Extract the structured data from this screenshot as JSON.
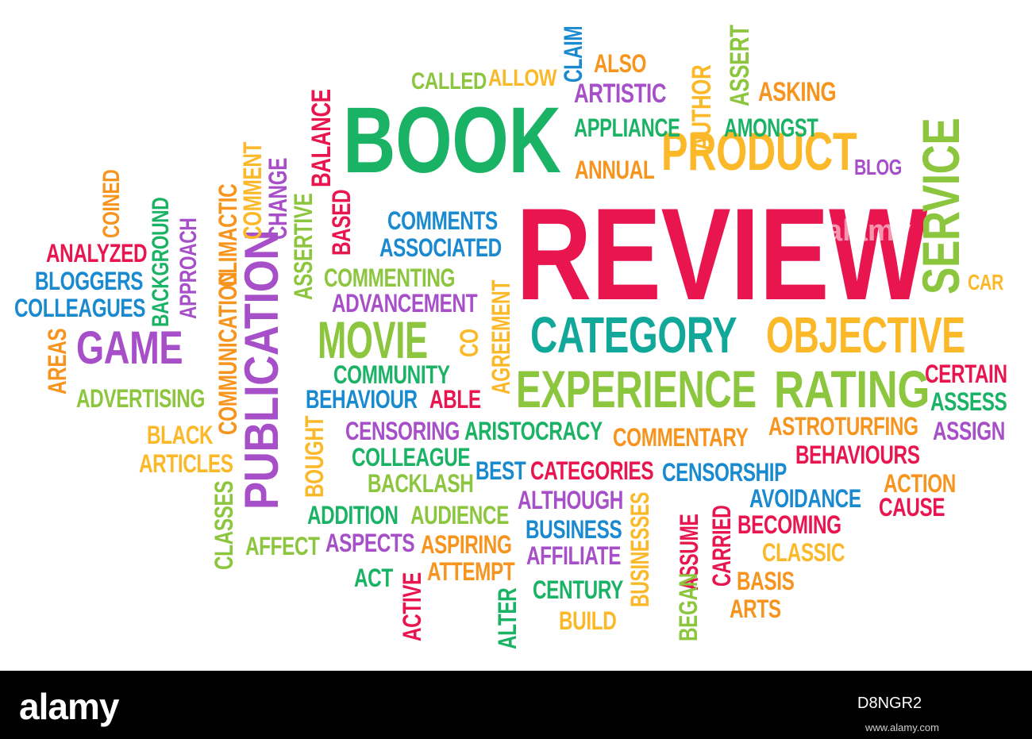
{
  "colors": {
    "red": "#e8154f",
    "green": "#1ab366",
    "lime": "#8cc63e",
    "blue": "#1a8ad0",
    "purple": "#a64fc8",
    "orange": "#f7941d",
    "yellow": "#fbb829",
    "teal": "#11a89a"
  },
  "words": [
    "REVIEW",
    "BOOK",
    "PRODUCT",
    "SERVICE",
    "CATEGORY",
    "OBJECTIVE",
    "EXPERIENCE",
    "RATING",
    "MOVIE",
    "GAME",
    "PUBLICATION",
    "CALLED",
    "ALLOW",
    "CLAIM",
    "ALSO",
    "ARTISTIC",
    "AUTHOR",
    "ASSERT",
    "ASKING",
    "APPLIANCE",
    "AMONGST",
    "ANNUAL",
    "BLOG",
    "CAR",
    "BALANCE",
    "COMMUNICATION",
    "CLIMACTIC",
    "COMMENT",
    "CHANGE",
    "ASSERTIVE",
    "BASED",
    "COMMENTS",
    "ASSOCIATED",
    "COMMENTING",
    "ADVANCEMENT",
    "AGREEMENT",
    "CO",
    "COINED",
    "BACKGROUND",
    "APPROACH",
    "ANALYZED",
    "BLOGGERS",
    "COLLEAGUES",
    "AREAS",
    "ADVERTISING",
    "BLACK",
    "ARTICLES",
    "CLASSES",
    "COMMUNITY",
    "BEHAVIOUR",
    "ABLE",
    "CENSORING",
    "ARISTOCRACY",
    "COMMENTARY",
    "ASTROTURFING",
    "CERTAIN",
    "ASSESS",
    "ASSIGN",
    "BOUGHT",
    "COLLEAGUE",
    "BEST",
    "CATEGORIES",
    "CENSORSHIP",
    "BEHAVIOURS",
    "BACKLASH",
    "ACTION",
    "CAUSE",
    "ADDITION",
    "AUDIENCE",
    "ALTHOUGH",
    "BUSINESSES",
    "ASSUME",
    "CARRIED",
    "AVOIDANCE",
    "BECOMING",
    "AFFECT",
    "ASPECTS",
    "ASPIRING",
    "BUSINESS",
    "AFFILIATE",
    "CLASSIC",
    "ACT",
    "ATTEMPT",
    "ACTIVE",
    "ALTER",
    "CENTURY",
    "BUILD",
    "BEGAN",
    "BASIS",
    "ARTS"
  ],
  "watermark": {
    "cloud_mark": "alamy"
  },
  "footer": {
    "logo": "alamy",
    "image_id": "D8NGR2",
    "url": "www.alamy.com"
  }
}
